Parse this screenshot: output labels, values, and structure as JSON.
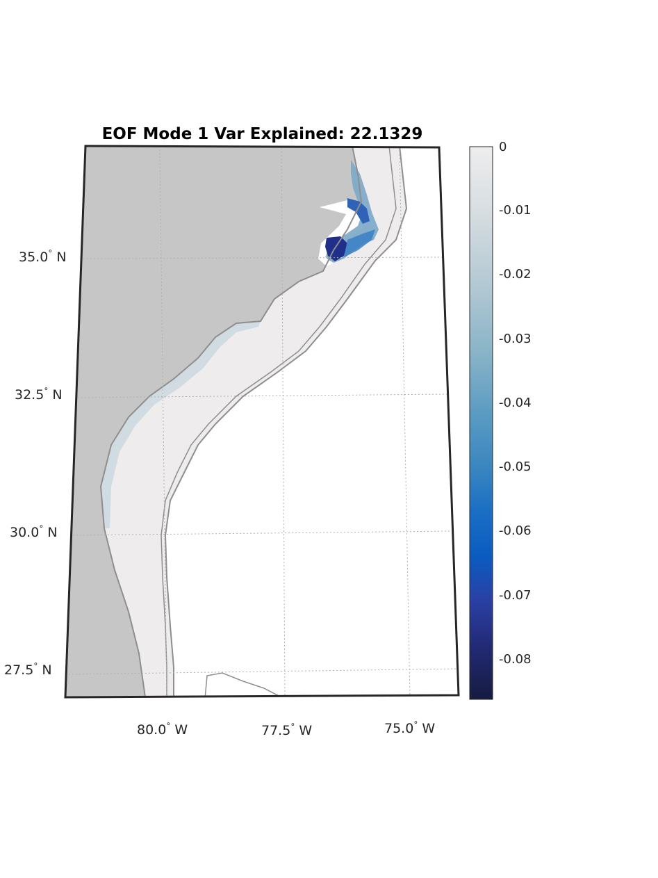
{
  "title": "EOF Mode 1 Var Explained: 22.1329",
  "lat_ticks": [
    {
      "deg": "35.0",
      "hemi": "N"
    },
    {
      "deg": "32.5",
      "hemi": "N"
    },
    {
      "deg": "30.0",
      "hemi": "N"
    },
    {
      "deg": "27.5",
      "hemi": "N"
    }
  ],
  "lon_ticks": [
    {
      "deg": "80.0",
      "hemi": "W"
    },
    {
      "deg": "77.5",
      "hemi": "W"
    },
    {
      "deg": "75.0",
      "hemi": "W"
    }
  ],
  "colorbar": {
    "ticks": [
      "0",
      "-0.01",
      "-0.02",
      "-0.03",
      "-0.04",
      "-0.05",
      "-0.06",
      "-0.07",
      "-0.08"
    ],
    "range": [
      -0.087,
      0
    ],
    "colors": [
      "#eeedee",
      "#c9d3d9",
      "#9dbdc9",
      "#6aa3bd",
      "#3a88bd",
      "#1b70c0",
      "#0a5cc0",
      "#2a3fa0",
      "#202a70",
      "#161d45"
    ]
  },
  "colors": {
    "land": "#c6c6c6",
    "ocean": "#eeeced",
    "coastline": "#8e8e8e",
    "frame": "#262626",
    "grid": "#b0b0b0",
    "strong_anomaly": "#1f2f8a"
  },
  "chart_data": {
    "type": "heatmap",
    "title": "EOF Mode 1 Var Explained: 22.1329",
    "variance_explained": 22.1329,
    "lat_range": [
      27.0,
      37.0
    ],
    "lon_range": [
      -82.0,
      -74.3
    ],
    "lat_ticks": [
      35.0,
      32.5,
      30.0,
      27.5
    ],
    "lon_ticks": [
      -80.0,
      -77.5,
      -75.0
    ],
    "colorbar_range": [
      -0.087,
      0
    ],
    "colorbar_ticks": [
      0,
      -0.01,
      -0.02,
      -0.03,
      -0.04,
      -0.05,
      -0.06,
      -0.07,
      -0.08
    ],
    "grid": true
  }
}
